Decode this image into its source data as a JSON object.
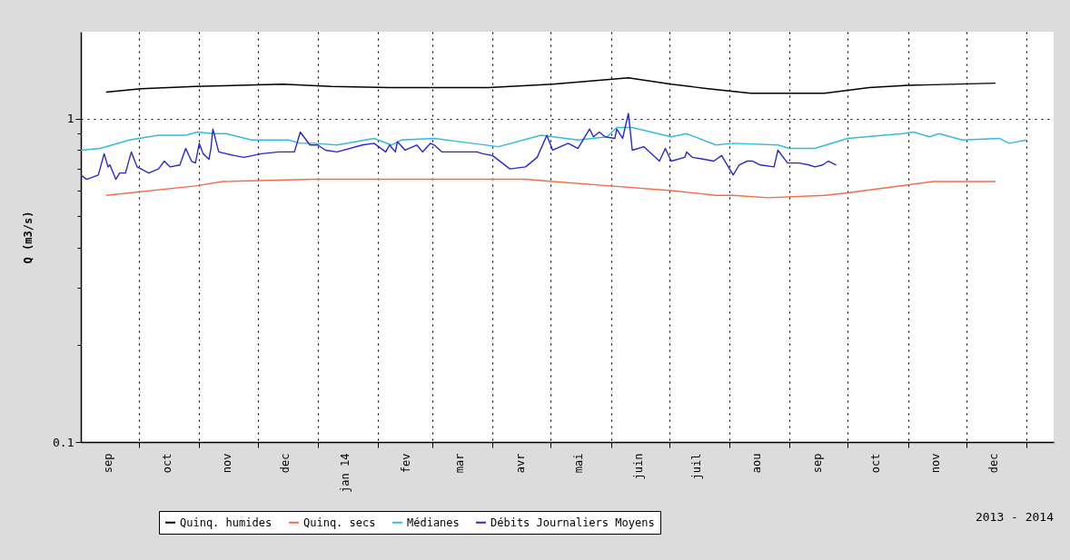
{
  "chart_data": {
    "type": "line",
    "ylabel": "Q (m3/s)",
    "annotations": [
      "2013 - 2014"
    ],
    "log": true,
    "grid": true,
    "legend": "bottom",
    "xlim": [
      "2013-09-01",
      "2015-01-15"
    ],
    "ylim": [
      0.1,
      1.86
    ],
    "xticks": [
      {
        "value": "2013-09-15",
        "label": "sep"
      },
      {
        "value": "2013-10-01",
        "label": null
      },
      {
        "value": "2013-10-15",
        "label": "oct"
      },
      {
        "value": "2013-11-01",
        "label": null
      },
      {
        "value": "2013-11-15",
        "label": "nov"
      },
      {
        "value": "2013-12-01",
        "label": null
      },
      {
        "value": "2013-12-15",
        "label": "dec"
      },
      {
        "value": "2014-01-01",
        "label": null
      },
      {
        "value": "2014-01-15",
        "label": "jan 14"
      },
      {
        "value": "2014-02-01",
        "label": null
      },
      {
        "value": "2014-02-15",
        "label": "fev"
      },
      {
        "value": "2014-03-01",
        "label": null
      },
      {
        "value": "2014-03-15",
        "label": "mar"
      },
      {
        "value": "2014-04-01",
        "label": null
      },
      {
        "value": "2014-04-15",
        "label": "avr"
      },
      {
        "value": "2014-05-01",
        "label": null
      },
      {
        "value": "2014-05-15",
        "label": "mai"
      },
      {
        "value": "2014-06-01",
        "label": null
      },
      {
        "value": "2014-06-15",
        "label": "juin"
      },
      {
        "value": "2014-07-01",
        "label": null
      },
      {
        "value": "2014-07-15",
        "label": "juil"
      },
      {
        "value": "2014-08-01",
        "label": null
      },
      {
        "value": "2014-08-15",
        "label": "aou"
      },
      {
        "value": "2014-09-01",
        "label": null
      },
      {
        "value": "2014-09-15",
        "label": "sep"
      },
      {
        "value": "2014-10-01",
        "label": null
      },
      {
        "value": "2014-10-15",
        "label": "oct"
      },
      {
        "value": "2014-11-01",
        "label": null
      },
      {
        "value": "2014-11-15",
        "label": "nov"
      },
      {
        "value": "2014-12-01",
        "label": null
      },
      {
        "value": "2014-12-15",
        "label": "dec"
      },
      {
        "value": "2015-01-01",
        "label": null
      }
    ],
    "yticks": [
      {
        "value": 0.1,
        "label": "0.1"
      },
      {
        "value": 0.2,
        "label": null
      },
      {
        "value": 0.3,
        "label": null
      },
      {
        "value": 0.4,
        "label": null
      },
      {
        "value": 0.5,
        "label": null
      },
      {
        "value": 0.6,
        "label": null
      },
      {
        "value": 0.7,
        "label": null
      },
      {
        "value": 0.8,
        "label": null
      },
      {
        "value": 0.9,
        "label": null
      },
      {
        "value": 1,
        "label": "1"
      }
    ],
    "series": [
      {
        "name": "Quinq. humides",
        "color": "#000000",
        "x": [
          "2013-09-14",
          "2013-10-02",
          "2013-10-30",
          "2013-12-14",
          "2014-01-08",
          "2014-02-07",
          "2014-03-30",
          "2014-05-02",
          "2014-06-10",
          "2014-07-02",
          "2014-07-21",
          "2014-08-12",
          "2014-09-19",
          "2014-10-12",
          "2014-11-01",
          "2014-12-16"
        ],
        "values": [
          1.21,
          1.24,
          1.26,
          1.28,
          1.26,
          1.25,
          1.25,
          1.28,
          1.34,
          1.28,
          1.24,
          1.2,
          1.2,
          1.25,
          1.27,
          1.29
        ]
      },
      {
        "name": "Quinq. secs",
        "color": "#f26b4a",
        "x": [
          "2013-09-14",
          "2013-10-30",
          "2013-11-13",
          "2013-12-30",
          "2014-01-08",
          "2014-02-07",
          "2014-04-18",
          "2014-05-02",
          "2014-06-01",
          "2014-07-02",
          "2014-07-25",
          "2014-08-03",
          "2014-08-21",
          "2014-09-19",
          "2014-10-01",
          "2014-11-14",
          "2014-12-16"
        ],
        "values": [
          0.58,
          0.62,
          0.64,
          0.65,
          0.65,
          0.65,
          0.65,
          0.64,
          0.62,
          0.6,
          0.58,
          0.58,
          0.57,
          0.58,
          0.59,
          0.64,
          0.64
        ]
      },
      {
        "name": "Médianes",
        "color": "#33bbdd",
        "x": [
          "2013-09-01",
          "2013-09-11",
          "2013-09-26",
          "2013-10-11",
          "2013-10-25",
          "2013-10-31",
          "2013-11-08",
          "2013-11-15",
          "2013-11-28",
          "2013-12-17",
          "2013-12-23",
          "2013-12-30",
          "2014-01-11",
          "2014-01-30",
          "2014-02-08",
          "2014-02-13",
          "2014-03-02",
          "2014-04-04",
          "2014-04-26",
          "2014-05-15",
          "2014-05-30",
          "2014-06-04",
          "2014-06-12",
          "2014-07-02",
          "2014-07-10",
          "2014-07-25",
          "2014-08-03",
          "2014-08-26",
          "2014-09-01",
          "2014-09-14",
          "2014-10-01",
          "2014-10-29",
          "2014-11-04",
          "2014-11-12",
          "2014-11-17",
          "2014-11-29",
          "2014-12-18",
          "2014-12-23",
          "2015-01-01"
        ],
        "values": [
          0.8,
          0.81,
          0.86,
          0.89,
          0.89,
          0.91,
          0.9,
          0.9,
          0.86,
          0.86,
          0.84,
          0.84,
          0.83,
          0.87,
          0.83,
          0.86,
          0.87,
          0.82,
          0.89,
          0.86,
          0.88,
          0.94,
          0.94,
          0.88,
          0.9,
          0.83,
          0.84,
          0.83,
          0.81,
          0.81,
          0.87,
          0.9,
          0.91,
          0.88,
          0.9,
          0.86,
          0.87,
          0.84,
          0.86
        ]
      },
      {
        "name": "Débits Journaliers Moyens",
        "color": "#2828d0",
        "x": [
          "2013-09-01",
          "2013-09-04",
          "2013-09-10",
          "2013-09-13",
          "2013-09-15",
          "2013-09-16",
          "2013-09-19",
          "2013-09-21",
          "2013-09-24",
          "2013-09-27",
          "2013-09-30",
          "2013-10-06",
          "2013-10-11",
          "2013-10-14",
          "2013-10-17",
          "2013-10-22",
          "2013-10-25",
          "2013-10-28",
          "2013-10-30",
          "2013-11-01",
          "2013-11-03",
          "2013-11-06",
          "2013-11-07",
          "2013-11-08",
          "2013-11-11",
          "2013-11-19",
          "2013-11-24",
          "2013-12-03",
          "2013-12-12",
          "2013-12-20",
          "2013-12-23",
          "2013-12-28",
          "2014-01-01",
          "2014-01-05",
          "2014-01-11",
          "2014-01-24",
          "2014-01-30",
          "2014-02-05",
          "2014-02-07",
          "2014-02-10",
          "2014-02-11",
          "2014-02-15",
          "2014-02-21",
          "2014-02-24",
          "2014-02-28",
          "2014-03-02",
          "2014-03-06",
          "2014-03-24",
          "2014-03-27",
          "2014-04-01",
          "2014-04-10",
          "2014-04-18",
          "2014-04-24",
          "2014-04-29",
          "2014-05-02",
          "2014-05-10",
          "2014-05-15",
          "2014-05-21",
          "2014-05-23",
          "2014-05-26",
          "2014-05-29",
          "2014-06-03",
          "2014-06-04",
          "2014-06-07",
          "2014-06-10",
          "2014-06-12",
          "2014-06-18",
          "2014-06-26",
          "2014-06-29",
          "2014-07-02",
          "2014-07-09",
          "2014-07-10",
          "2014-07-13",
          "2014-07-19",
          "2014-07-24",
          "2014-07-28",
          "2014-08-03",
          "2014-08-06",
          "2014-08-10",
          "2014-08-13",
          "2014-08-17",
          "2014-08-24",
          "2014-08-26",
          "2014-08-31",
          "2014-09-06",
          "2014-09-11",
          "2014-09-14",
          "2014-09-18",
          "2014-09-21",
          "2014-09-25"
        ],
        "values": [
          0.67,
          0.65,
          0.67,
          0.78,
          0.71,
          0.72,
          0.65,
          0.68,
          0.68,
          0.79,
          0.71,
          0.68,
          0.7,
          0.74,
          0.71,
          0.72,
          0.81,
          0.74,
          0.73,
          0.84,
          0.78,
          0.75,
          0.81,
          0.93,
          0.79,
          0.77,
          0.76,
          0.78,
          0.79,
          0.79,
          0.91,
          0.83,
          0.83,
          0.8,
          0.79,
          0.83,
          0.84,
          0.79,
          0.83,
          0.79,
          0.85,
          0.8,
          0.83,
          0.79,
          0.84,
          0.83,
          0.79,
          0.79,
          0.78,
          0.77,
          0.7,
          0.71,
          0.76,
          0.89,
          0.8,
          0.84,
          0.81,
          0.93,
          0.88,
          0.91,
          0.88,
          0.87,
          0.93,
          0.87,
          1.04,
          0.8,
          0.82,
          0.74,
          0.81,
          0.74,
          0.76,
          0.79,
          0.76,
          0.75,
          0.74,
          0.77,
          0.67,
          0.72,
          0.74,
          0.74,
          0.72,
          0.71,
          0.8,
          0.73,
          0.73,
          0.72,
          0.71,
          0.72,
          0.74,
          0.72
        ]
      }
    ]
  }
}
